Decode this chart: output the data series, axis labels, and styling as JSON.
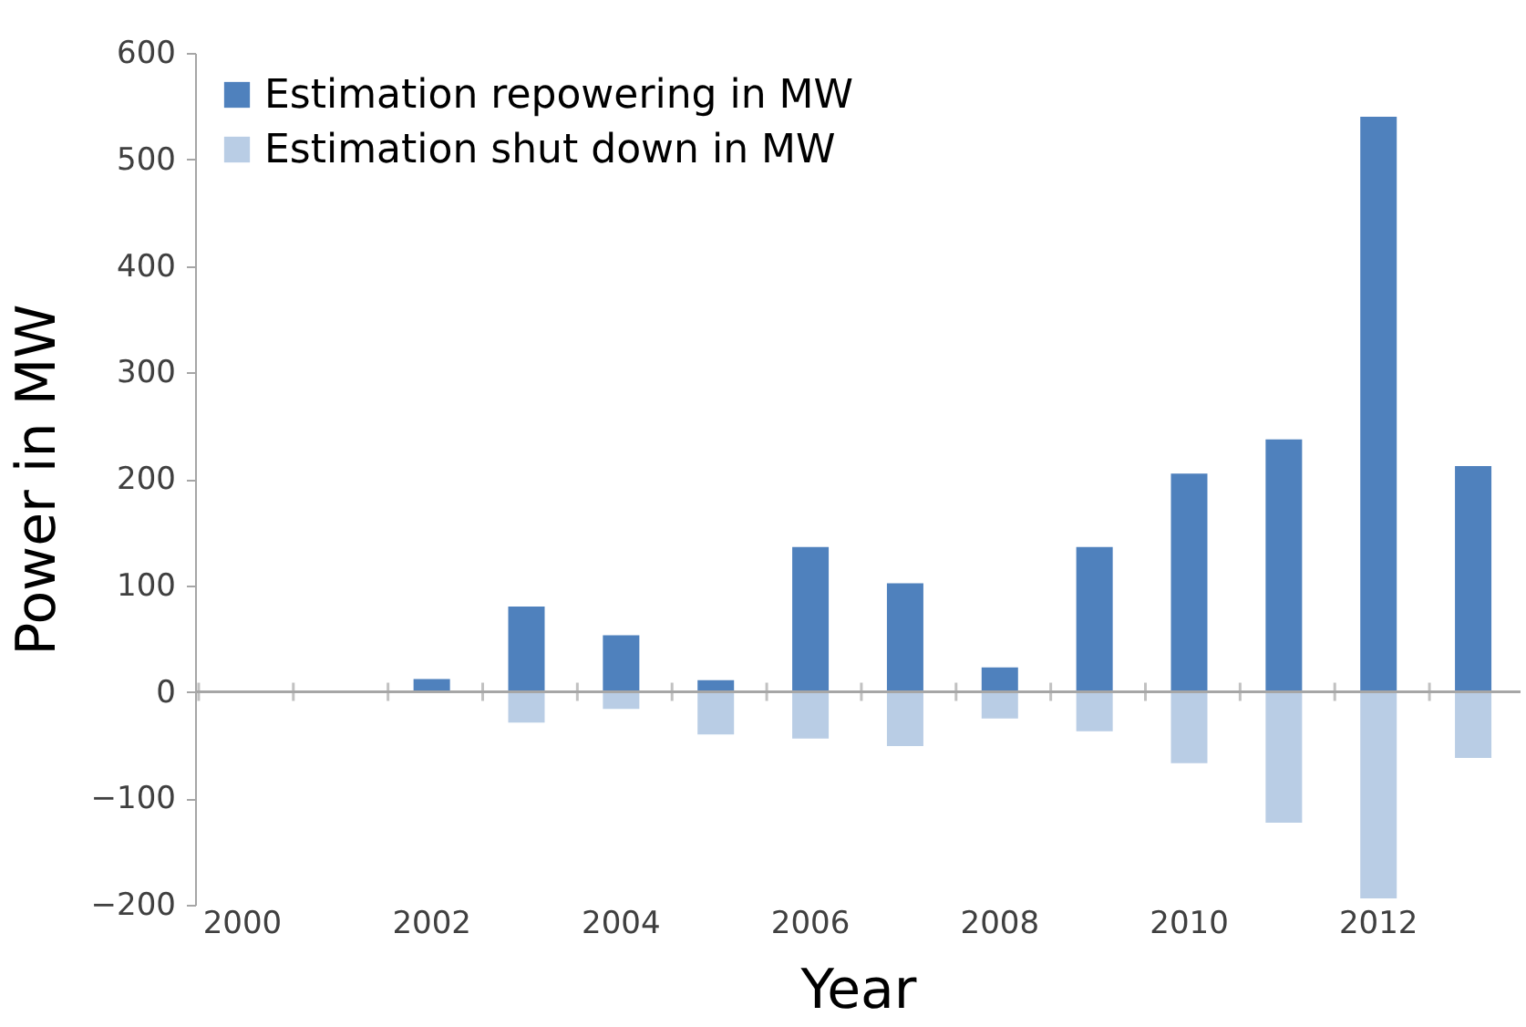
{
  "chart_data": {
    "type": "bar",
    "stacked": true,
    "xlabel": "Year",
    "ylabel": "Power in MW",
    "categories": [
      "2000",
      null,
      "2002",
      null,
      "2004",
      null,
      "2006",
      null,
      "2008",
      null,
      "2010",
      null,
      "2012",
      null
    ],
    "series": [
      {
        "name": "Estimation repowering in MW",
        "color": "#4f81bd",
        "values": [
          null,
          null,
          12,
          80,
          53,
          11,
          136,
          102,
          23,
          136,
          205,
          237,
          540,
          212
        ]
      },
      {
        "name": "Estimation shut down in MW",
        "color": "#b9cde5",
        "values": [
          null,
          null,
          null,
          -29,
          -16,
          -40,
          -44,
          -51,
          -25,
          -37,
          -67,
          -123,
          -194,
          -62
        ]
      }
    ],
    "ylim": [
      -200,
      600
    ],
    "yticks": [
      -200,
      -100,
      0,
      100,
      200,
      300,
      400,
      500,
      600
    ],
    "ref_lines": [
      {
        "axis": "y",
        "value": 0,
        "color": "#a6a6a6"
      }
    ],
    "grid": false,
    "legend": "top left"
  }
}
